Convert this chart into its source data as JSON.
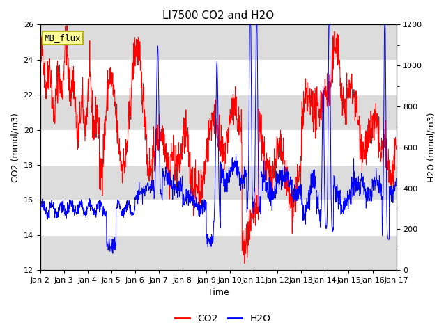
{
  "title": "LI7500 CO2 and H2O",
  "ylabel_left": "CO2 (mmol/m3)",
  "ylabel_right": "H2O (mmol/m3)",
  "xlabel": "Time",
  "ylim_left": [
    12,
    26
  ],
  "ylim_right": [
    0,
    1200
  ],
  "yticks_left": [
    12,
    14,
    16,
    18,
    20,
    22,
    24,
    26
  ],
  "yticks_right": [
    0,
    200,
    400,
    600,
    800,
    1000,
    1200
  ],
  "xtick_labels": [
    "Jan 2",
    "Jan 3",
    "Jan 4",
    "Jan 5",
    "Jan 6",
    "Jan 7",
    "Jan 8",
    "Jan 9",
    "Jan 10",
    "Jan 11",
    "Jan 12",
    "Jan 13",
    "Jan 14",
    "Jan 15",
    "Jan 16",
    "Jan 17"
  ],
  "mb_flux_label": "MB_flux",
  "legend_labels": [
    "CO2",
    "H2O"
  ],
  "co2_color": "#FF0000",
  "h2o_color": "#0000FF",
  "band_color": "#DCDCDC",
  "background_color": "#FFFFFF",
  "title_fontsize": 11,
  "axis_label_fontsize": 9,
  "tick_fontsize": 8,
  "legend_fontsize": 10,
  "mb_flux_bg": "#FFFF99",
  "mb_flux_border": "#AAAA00",
  "seed": 42,
  "n_points": 1500,
  "days": 15
}
